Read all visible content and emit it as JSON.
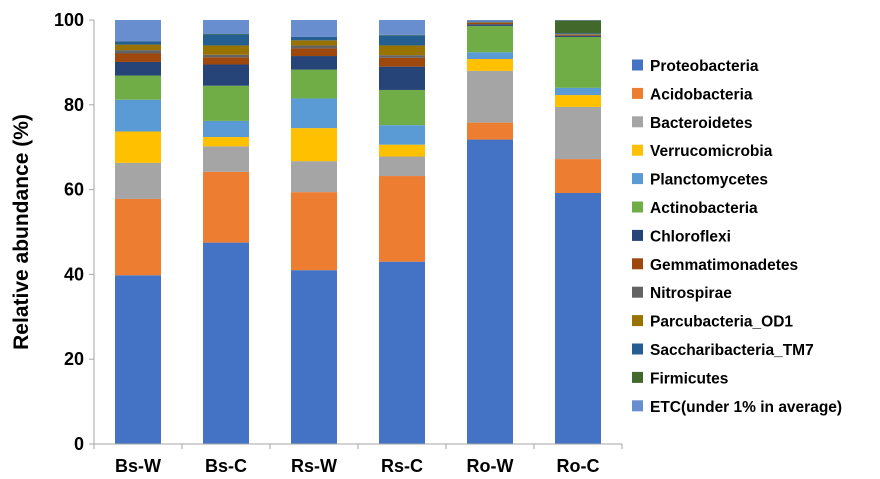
{
  "chart_data": {
    "type": "bar",
    "stacked": true,
    "title": "",
    "xlabel": "",
    "ylabel": "Relative abundance (%)",
    "ylim": [
      0,
      100
    ],
    "yticks": [
      0,
      20,
      40,
      60,
      80,
      100
    ],
    "grid": false,
    "legend_position": "right",
    "categories": [
      "Bs-W",
      "Bs-C",
      "Rs-W",
      "Rs-C",
      "Ro-W",
      "Ro-C"
    ],
    "series": [
      {
        "name": "Proteobacteria",
        "color": "#4472C4",
        "values": [
          39.8,
          47.5,
          41.0,
          43.0,
          71.8,
          59.2
        ]
      },
      {
        "name": "Acidobacteria",
        "color": "#ED7D31",
        "values": [
          18.0,
          16.7,
          18.4,
          20.2,
          4.0,
          8.0
        ]
      },
      {
        "name": "Bacteroidetes",
        "color": "#A5A5A5",
        "values": [
          8.5,
          6.0,
          7.3,
          4.6,
          12.2,
          12.3
        ]
      },
      {
        "name": "Verrucomicrobia",
        "color": "#FFC000",
        "values": [
          7.4,
          2.2,
          7.8,
          2.8,
          2.8,
          2.8
        ]
      },
      {
        "name": "Planctomycetes",
        "color": "#5B9BD5",
        "values": [
          7.5,
          3.8,
          7.0,
          4.6,
          1.6,
          1.7
        ]
      },
      {
        "name": "Actinobacteria",
        "color": "#70AD47",
        "values": [
          5.7,
          8.3,
          6.8,
          8.3,
          6.2,
          12.0
        ]
      },
      {
        "name": "Chloroflexi",
        "color": "#264478",
        "values": [
          3.2,
          5.0,
          3.2,
          5.5,
          0.4,
          0.3
        ]
      },
      {
        "name": "Gemmatimonadetes",
        "color": "#9E480E",
        "values": [
          2.0,
          1.7,
          1.8,
          2.1,
          0.3,
          0.2
        ]
      },
      {
        "name": "Nitrospirae",
        "color": "#636363",
        "values": [
          0.8,
          0.6,
          0.7,
          0.6,
          0.1,
          0.1
        ]
      },
      {
        "name": "Parcubacteria_OD1",
        "color": "#997300",
        "values": [
          1.3,
          2.2,
          1.2,
          2.3,
          0.1,
          0.1
        ]
      },
      {
        "name": "Saccharibacteria_TM7",
        "color": "#255E91",
        "values": [
          0.8,
          2.6,
          0.8,
          2.4,
          0.2,
          0.2
        ]
      },
      {
        "name": "Firmicutes",
        "color": "#43682B",
        "values": [
          0.0,
          0.1,
          0.0,
          0.1,
          0.0,
          3.0
        ]
      },
      {
        "name": "ETC(under 1% in average)",
        "color": "#698ED0",
        "values": [
          5.0,
          3.3,
          4.0,
          3.5,
          0.3,
          0.1
        ]
      }
    ]
  }
}
